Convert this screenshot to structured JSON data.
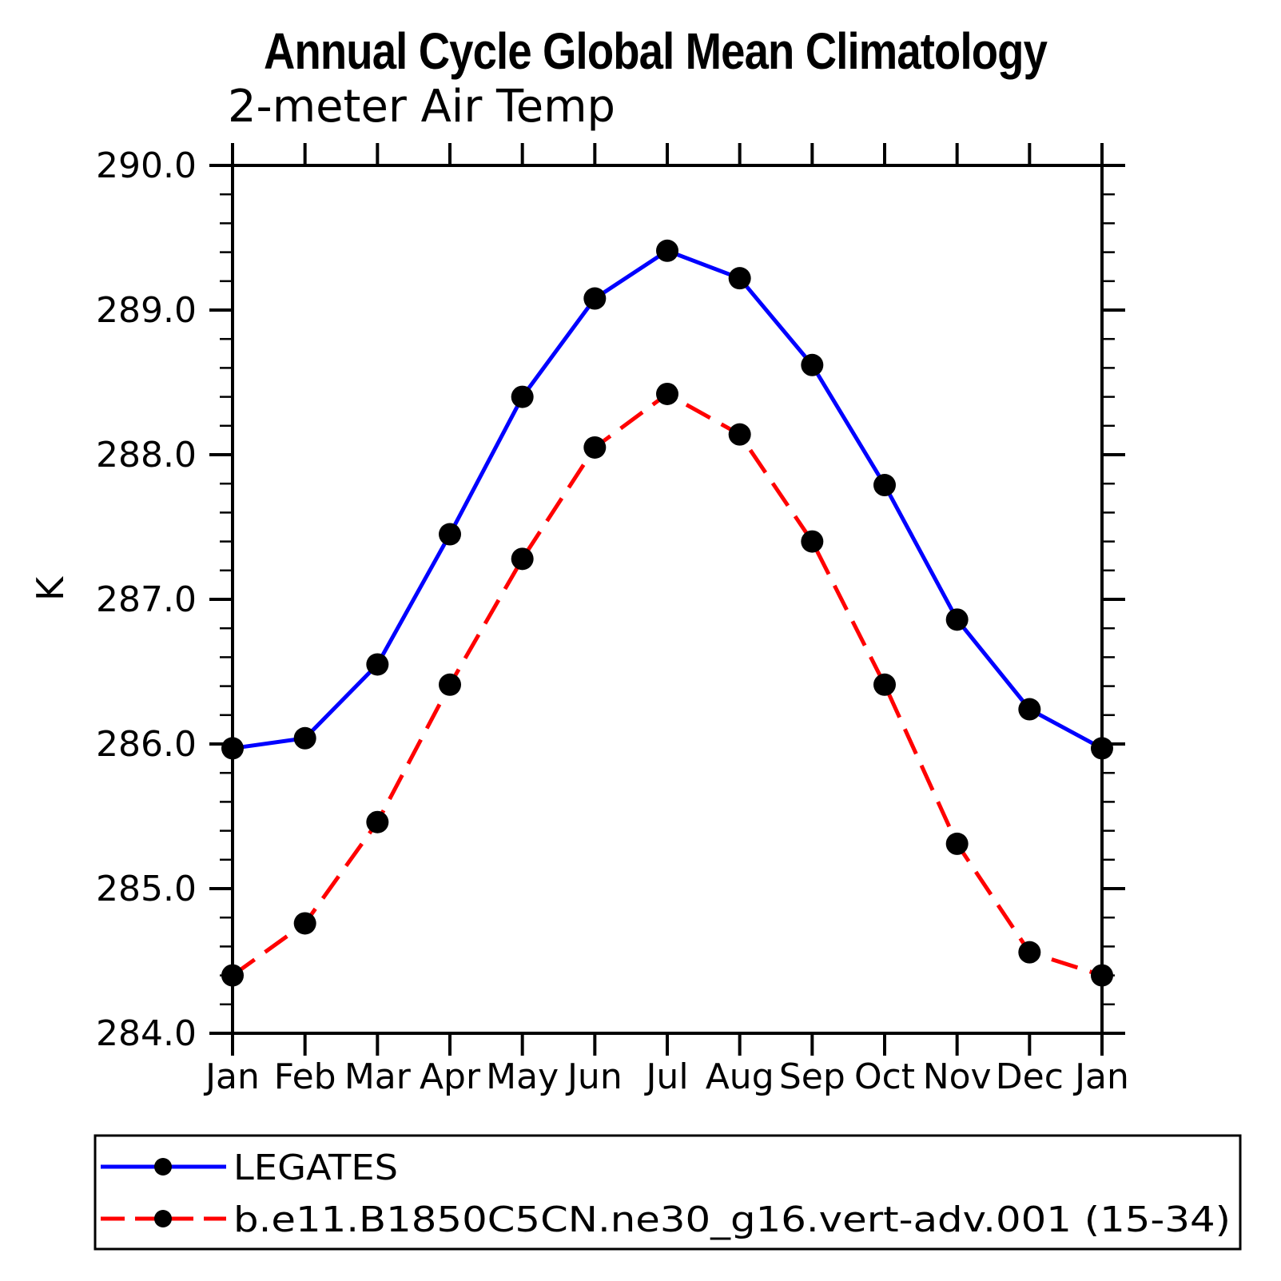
{
  "chart_data": {
    "type": "line",
    "title": "Annual Cycle Global Mean Climatology",
    "subtitle": "2-meter Air Temp",
    "ylabel": "K",
    "categories": [
      "Jan",
      "Feb",
      "Mar",
      "Apr",
      "May",
      "Jun",
      "Jul",
      "Aug",
      "Sep",
      "Oct",
      "Nov",
      "Dec",
      "Jan"
    ],
    "ylim": [
      284.0,
      290.0
    ],
    "ytick_major_interval": 1.0,
    "ytick_minor_interval": 0.2,
    "ytick_labels": [
      "290.0",
      "289.0",
      "288.0",
      "287.0",
      "286.0",
      "285.0",
      "284.0"
    ],
    "grid": false,
    "legend_position": "bottom",
    "series": [
      {
        "name": "LEGATES",
        "color": "#0000ff",
        "line_style": "solid",
        "marker": "circle",
        "marker_color": "#000000",
        "values": [
          285.97,
          286.04,
          286.55,
          287.45,
          288.4,
          289.08,
          289.41,
          289.22,
          288.62,
          287.79,
          286.86,
          286.24,
          285.97
        ]
      },
      {
        "name": "b.e11.B1850C5CN.ne30_g16.vert-adv.001 (15-34)",
        "color": "#ff0000",
        "line_style": "dashed",
        "marker": "circle",
        "marker_color": "#000000",
        "values": [
          284.4,
          284.76,
          285.46,
          286.41,
          287.28,
          288.05,
          288.42,
          288.14,
          287.4,
          286.41,
          285.31,
          284.56,
          284.4
        ]
      }
    ]
  },
  "colors": {
    "background": "#ffffff",
    "axis": "#000000",
    "series_blue": "#0000ff",
    "series_red": "#ff0000",
    "marker": "#000000"
  }
}
